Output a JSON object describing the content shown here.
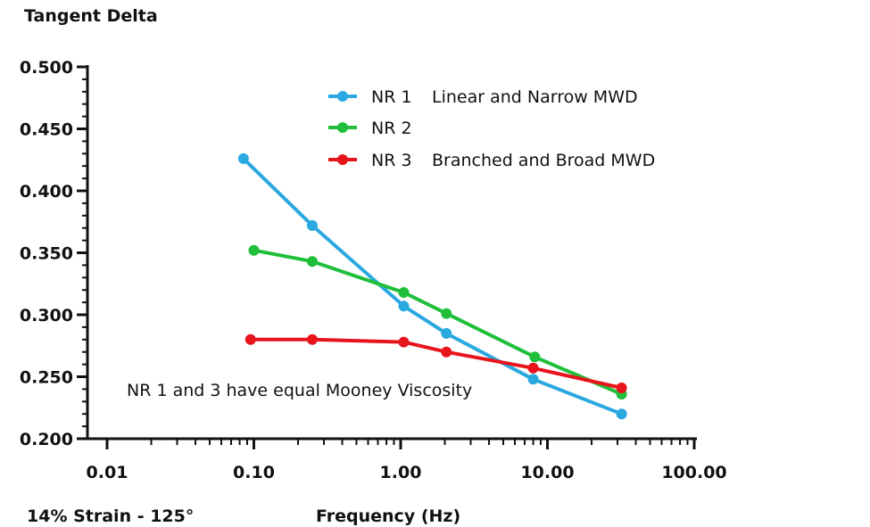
{
  "chart_data": {
    "type": "line",
    "title": "",
    "ylabel": "Tangent Delta",
    "xlabel": "Frequency (Hz)",
    "condition_note": "14% Strain - 125°",
    "annotation": "NR 1 and 3 have equal Mooney Viscosity",
    "x_scale": "log",
    "xlim": [
      0.01,
      100
    ],
    "ylim": [
      0.2,
      0.5
    ],
    "x_tick_labels": [
      "0.01",
      "0.10",
      "1.00",
      "10.00",
      "100.00"
    ],
    "x_tick_values": [
      0.01,
      0.1,
      1,
      10,
      100
    ],
    "y_tick_labels": [
      "0.200",
      "0.250",
      "0.300",
      "0.350",
      "0.400",
      "0.450",
      "0.500"
    ],
    "y_tick_values": [
      0.2,
      0.25,
      0.3,
      0.35,
      0.4,
      0.45,
      0.5
    ],
    "grid": false,
    "legend_position": "top-center",
    "series": [
      {
        "name": "NR 1",
        "description": "Linear and Narrow MWD",
        "color": "#2aa8e0",
        "points": [
          {
            "x": 0.085,
            "y": 0.426
          },
          {
            "x": 0.25,
            "y": 0.372
          },
          {
            "x": 1.05,
            "y": 0.307
          },
          {
            "x": 2.05,
            "y": 0.285
          },
          {
            "x": 8.0,
            "y": 0.248
          },
          {
            "x": 32.0,
            "y": 0.22
          }
        ]
      },
      {
        "name": "NR 2",
        "description": "",
        "color": "#1fbf3a",
        "points": [
          {
            "x": 0.1,
            "y": 0.352
          },
          {
            "x": 0.25,
            "y": 0.343
          },
          {
            "x": 1.05,
            "y": 0.318
          },
          {
            "x": 2.05,
            "y": 0.301
          },
          {
            "x": 8.2,
            "y": 0.266
          },
          {
            "x": 32.0,
            "y": 0.236
          }
        ]
      },
      {
        "name": "NR 3",
        "description": "Branched and Broad MWD",
        "color": "#e8141c",
        "points": [
          {
            "x": 0.095,
            "y": 0.28
          },
          {
            "x": 0.25,
            "y": 0.28
          },
          {
            "x": 1.05,
            "y": 0.278
          },
          {
            "x": 2.05,
            "y": 0.27
          },
          {
            "x": 8.0,
            "y": 0.257
          },
          {
            "x": 32.0,
            "y": 0.241
          }
        ]
      }
    ]
  }
}
